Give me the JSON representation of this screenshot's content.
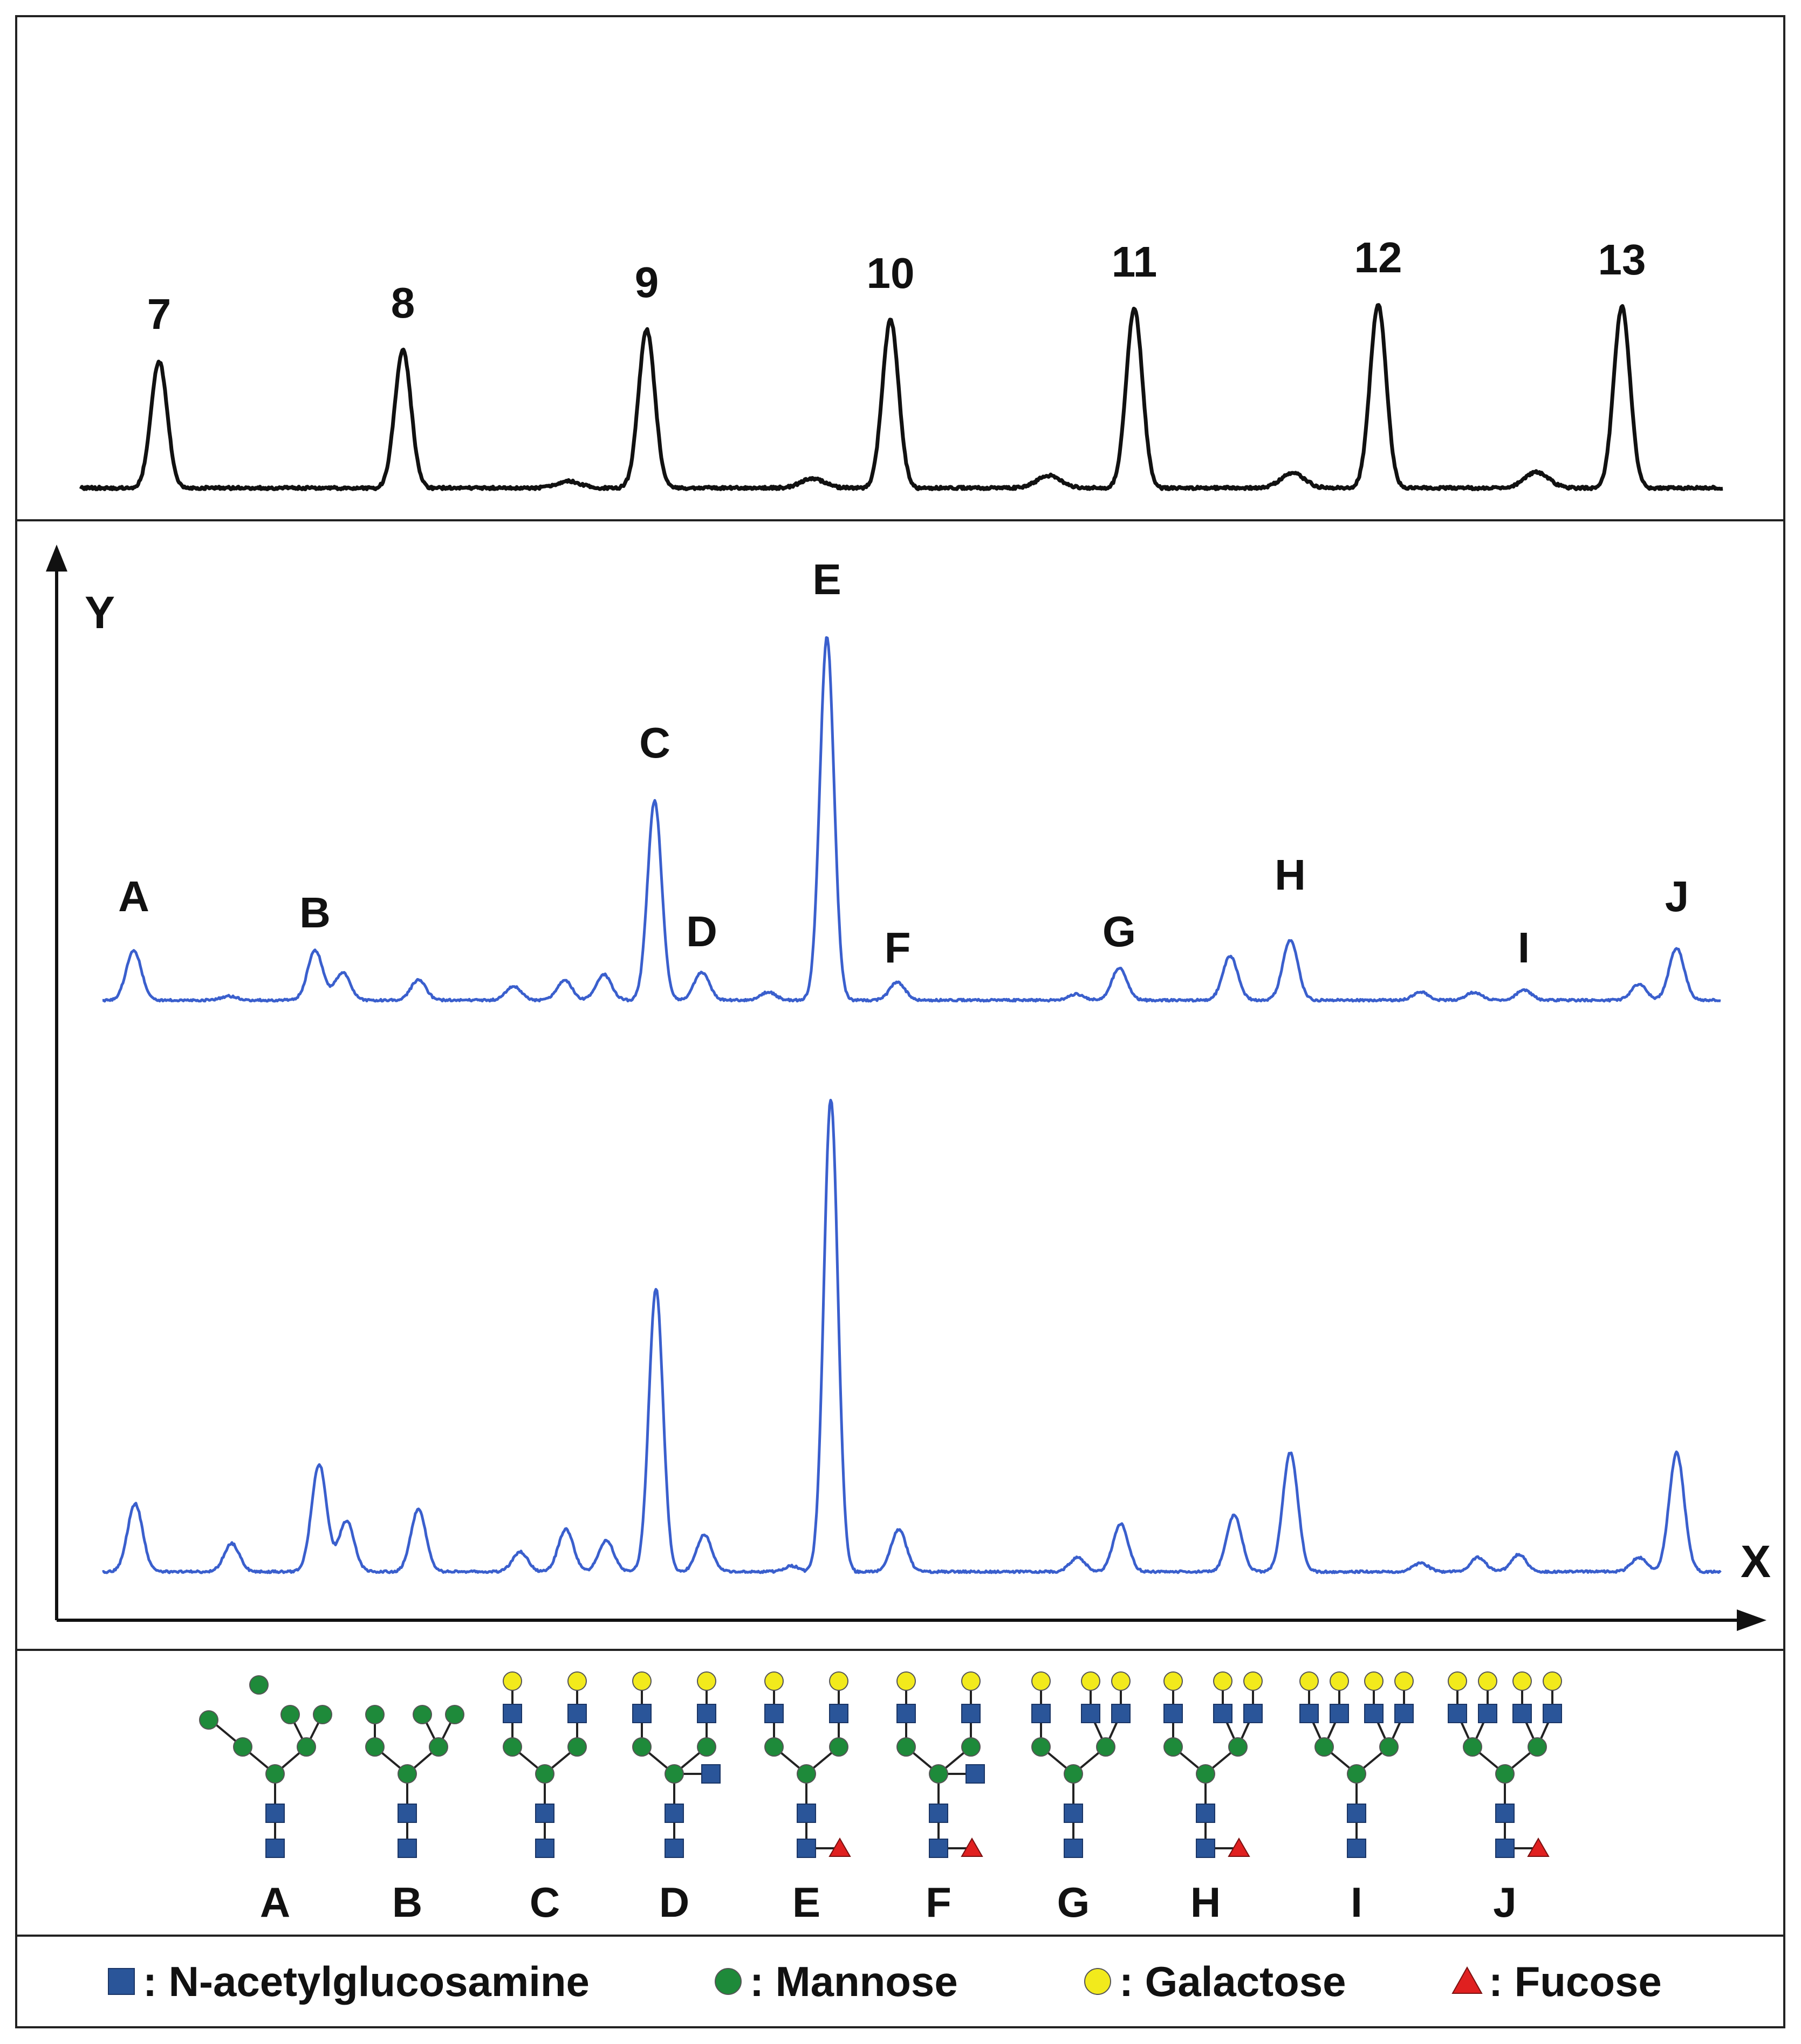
{
  "chart_data": [
    {
      "type": "line",
      "panel": "reference-ladder",
      "color": "#111111",
      "peaks": [
        {
          "label": "7",
          "x": 1.0,
          "height": 0.56
        },
        {
          "label": "8",
          "x": 2.0,
          "height": 0.61
        },
        {
          "label": "9",
          "x": 3.0,
          "height": 0.7
        },
        {
          "label": "10",
          "x": 4.0,
          "height": 0.74
        },
        {
          "label": "11",
          "x": 5.0,
          "height": 0.79
        },
        {
          "label": "12",
          "x": 6.0,
          "height": 0.81
        },
        {
          "label": "13",
          "x": 7.0,
          "height": 0.8
        }
      ],
      "minor_peaks": [
        {
          "x": 2.68,
          "height": 0.03
        },
        {
          "x": 3.68,
          "height": 0.04
        },
        {
          "x": 4.65,
          "height": 0.055
        },
        {
          "x": 5.65,
          "height": 0.065
        },
        {
          "x": 6.65,
          "height": 0.07
        }
      ]
    },
    {
      "type": "line",
      "panel": "sample-chromatograms",
      "xlabel": "X",
      "ylabel": "Y",
      "color": "#3a5fcd",
      "series": [
        {
          "peaks": [
            {
              "label": "A",
              "x": 102,
              "height": 0.25
            },
            {
              "x": 175,
              "height": 0.02
            },
            {
              "label": "B",
              "x": 241,
              "height": 0.25
            },
            {
              "x": 262,
              "height": 0.14
            },
            {
              "x": 320,
              "height": 0.1
            },
            {
              "x": 393,
              "height": 0.07
            },
            {
              "x": 432,
              "height": 0.1
            },
            {
              "x": 462,
              "height": 0.13
            },
            {
              "label": "C",
              "x": 501,
              "height": 1.0
            },
            {
              "label": "D",
              "x": 537,
              "height": 0.14
            },
            {
              "x": 588,
              "height": 0.04
            },
            {
              "label": "E",
              "x": 633,
              "height": 1.82
            },
            {
              "label": "F",
              "x": 687,
              "height": 0.09
            },
            {
              "x": 824,
              "height": 0.03
            },
            {
              "label": "G",
              "x": 857,
              "height": 0.16
            },
            {
              "x": 942,
              "height": 0.22
            },
            {
              "label": "H",
              "x": 988,
              "height": 0.3
            },
            {
              "x": 1088,
              "height": 0.04
            },
            {
              "x": 1129,
              "height": 0.04
            },
            {
              "label": "I",
              "x": 1167,
              "height": 0.05
            },
            {
              "x": 1255,
              "height": 0.08
            },
            {
              "label": "J",
              "x": 1284,
              "height": 0.26
            }
          ]
        },
        {
          "peaks": [
            {
              "x": 103,
              "height": 0.24
            },
            {
              "x": 177,
              "height": 0.1
            },
            {
              "x": 244,
              "height": 0.38
            },
            {
              "x": 265,
              "height": 0.18
            },
            {
              "x": 320,
              "height": 0.22
            },
            {
              "x": 398,
              "height": 0.07
            },
            {
              "x": 433,
              "height": 0.15
            },
            {
              "x": 464,
              "height": 0.11
            },
            {
              "x": 502,
              "height": 1.0
            },
            {
              "x": 539,
              "height": 0.13
            },
            {
              "x": 606,
              "height": 0.02
            },
            {
              "x": 636,
              "height": 1.67
            },
            {
              "x": 688,
              "height": 0.15
            },
            {
              "x": 825,
              "height": 0.05
            },
            {
              "x": 858,
              "height": 0.17
            },
            {
              "x": 945,
              "height": 0.2
            },
            {
              "x": 988,
              "height": 0.42
            },
            {
              "x": 1088,
              "height": 0.03
            },
            {
              "x": 1132,
              "height": 0.05
            },
            {
              "x": 1163,
              "height": 0.06
            },
            {
              "x": 1255,
              "height": 0.05
            },
            {
              "x": 1284,
              "height": 0.42
            }
          ]
        }
      ]
    }
  ],
  "glycans": [
    {
      "label": "A",
      "type": "man5a"
    },
    {
      "label": "B",
      "type": "man5b"
    },
    {
      "label": "C",
      "type": "bi"
    },
    {
      "label": "D",
      "type": "bi-bisect"
    },
    {
      "label": "E",
      "type": "bi-fuc"
    },
    {
      "label": "F",
      "type": "bi-bisect-fuc"
    },
    {
      "label": "G",
      "type": "tri"
    },
    {
      "label": "H",
      "type": "tri-fuc"
    },
    {
      "label": "I",
      "type": "tetra"
    },
    {
      "label": "J",
      "type": "tetra-fuc"
    }
  ],
  "legend": [
    {
      "symbol": "square",
      "color": "#2a5599",
      "text": ": N-acetylglucosamine"
    },
    {
      "symbol": "circle",
      "color": "#1e8a3a",
      "text": ": Mannose"
    },
    {
      "symbol": "circle",
      "color": "#f2ea1c",
      "text": ": Galactose"
    },
    {
      "symbol": "triangle",
      "color": "#e02020",
      "text": ": Fucose"
    }
  ]
}
